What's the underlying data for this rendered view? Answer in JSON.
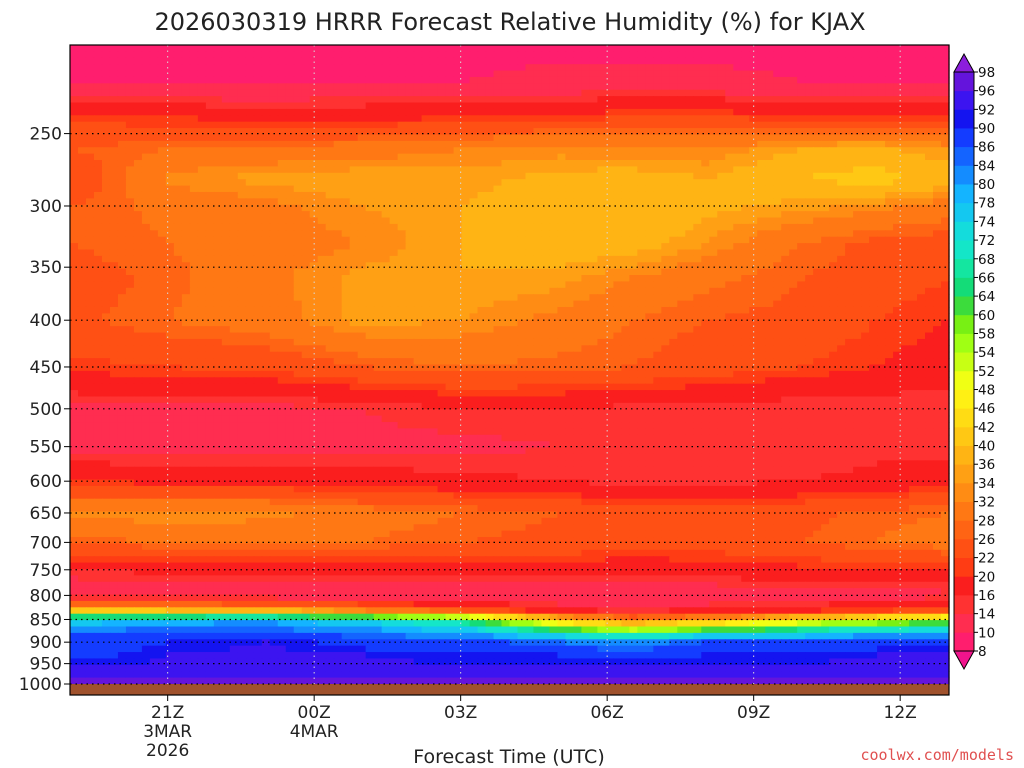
{
  "chart_data": {
    "type": "heatmap",
    "title": "2026030319 HRRR Forecast Relative Humidity (%) for KJAX",
    "xlabel": "Forecast Time (UTC)",
    "credit": "coolwx.com/models",
    "x_ticks": [
      {
        "hour": 2,
        "lines": [
          "21Z",
          "3MAR",
          "2026"
        ]
      },
      {
        "hour": 5,
        "lines": [
          "00Z",
          "4MAR"
        ]
      },
      {
        "hour": 8,
        "lines": [
          "03Z"
        ]
      },
      {
        "hour": 11,
        "lines": [
          "06Z"
        ]
      },
      {
        "hour": 14,
        "lines": [
          "09Z"
        ]
      },
      {
        "hour": 17,
        "lines": [
          "12Z"
        ]
      }
    ],
    "xlim": [
      0,
      18
    ],
    "y_ticks": [
      250,
      300,
      350,
      400,
      450,
      500,
      550,
      600,
      650,
      700,
      750,
      800,
      850,
      900,
      950,
      1000
    ],
    "ylim": [
      1000,
      200
    ],
    "y_scale": "log-pressure",
    "colorbar_levels": [
      8,
      10,
      14,
      16,
      20,
      22,
      26,
      28,
      32,
      34,
      36,
      40,
      42,
      46,
      48,
      52,
      54,
      58,
      60,
      64,
      66,
      68,
      72,
      74,
      78,
      80,
      84,
      86,
      90,
      92,
      96,
      98
    ],
    "colorbar_colors": [
      "#f0148c",
      "#ff1e6e",
      "#ff2d50",
      "#ff3232",
      "#fa1e1e",
      "#ff3c14",
      "#ff5014",
      "#ff6414",
      "#ff7814",
      "#ff8c14",
      "#ffa014",
      "#ffb414",
      "#ffc814",
      "#ffdc14",
      "#fff014",
      "#f0ff14",
      "#c8ff14",
      "#a0ff14",
      "#78f014",
      "#3cdc3c",
      "#14dc78",
      "#14e6a0",
      "#14e6c8",
      "#14dcdc",
      "#14c8f0",
      "#14b4ff",
      "#148cff",
      "#1464ff",
      "#143cff",
      "#1414f0",
      "#3c14f0",
      "#6414dc",
      "#8c1edc"
    ],
    "profile_pressures": [
      200,
      220,
      240,
      260,
      280,
      300,
      330,
      360,
      400,
      450,
      500,
      550,
      600,
      650,
      700,
      750,
      800,
      830,
      850,
      880,
      900,
      930,
      960,
      990,
      1000
    ],
    "profiles": [
      {
        "hour": 0,
        "rh": [
          9,
          9,
          21,
          26,
          22,
          26,
          26,
          24,
          25,
          21,
          13,
          13,
          20,
          33,
          27,
          16,
          10,
          40,
          74,
          86,
          86,
          88,
          92,
          96,
          97
        ]
      },
      {
        "hour": 2,
        "rh": [
          9,
          9,
          20,
          28,
          33,
          29,
          28,
          27,
          28,
          22,
          13,
          12,
          19,
          34,
          28,
          17,
          10,
          38,
          76,
          88,
          90,
          92,
          93,
          96,
          97
        ]
      },
      {
        "hour": 4,
        "rh": [
          9,
          9,
          19,
          29,
          35,
          31,
          30,
          31,
          30,
          23,
          13,
          12,
          19,
          33,
          29,
          17,
          10,
          36,
          78,
          88,
          92,
          93,
          94,
          96,
          97
        ]
      },
      {
        "hour": 6,
        "rh": [
          9,
          10,
          19,
          30,
          36,
          34,
          32,
          35,
          35,
          26,
          14,
          13,
          18,
          30,
          28,
          18,
          10,
          30,
          72,
          84,
          88,
          92,
          94,
          96,
          97
        ]
      },
      {
        "hour": 8,
        "rh": [
          9,
          10,
          20,
          32,
          35,
          36,
          36,
          36,
          34,
          28,
          16,
          13,
          17,
          28,
          26,
          18,
          10,
          24,
          64,
          80,
          88,
          90,
          92,
          96,
          97
        ]
      },
      {
        "hour": 10,
        "rh": [
          9,
          11,
          21,
          33,
          37,
          38,
          38,
          35,
          31,
          27,
          16,
          14,
          16,
          26,
          25,
          18,
          11,
          16,
          40,
          70,
          84,
          90,
          92,
          96,
          97
        ]
      },
      {
        "hour": 11.5,
        "rh": [
          9,
          11,
          22,
          32,
          38,
          40,
          38,
          32,
          28,
          26,
          15,
          14,
          15,
          24,
          24,
          17,
          11,
          14,
          30,
          62,
          82,
          88,
          92,
          96,
          97
        ]
      },
      {
        "hour": 13,
        "rh": [
          9,
          11,
          22,
          32,
          36,
          37,
          34,
          29,
          26,
          24,
          15,
          14,
          15,
          24,
          24,
          18,
          11,
          16,
          34,
          70,
          86,
          90,
          92,
          96,
          97
        ]
      },
      {
        "hour": 15,
        "rh": [
          9,
          10,
          21,
          36,
          40,
          35,
          28,
          26,
          25,
          22,
          14,
          14,
          16,
          25,
          26,
          19,
          12,
          18,
          44,
          74,
          86,
          90,
          93,
          96,
          97
        ]
      },
      {
        "hour": 16.5,
        "rh": [
          9,
          10,
          21,
          37,
          42,
          33,
          25,
          24,
          22,
          20,
          14,
          15,
          17,
          27,
          28,
          20,
          12,
          20,
          50,
          78,
          88,
          92,
          94,
          96,
          97
        ]
      },
      {
        "hour": 18,
        "rh": [
          9,
          10,
          20,
          34,
          38,
          30,
          24,
          22,
          20,
          18,
          14,
          15,
          18,
          28,
          30,
          20,
          13,
          22,
          56,
          80,
          88,
          92,
          94,
          96,
          97
        ]
      }
    ]
  }
}
